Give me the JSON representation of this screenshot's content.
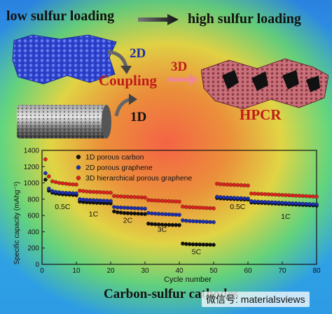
{
  "header": {
    "left_text": "low sulfur loading",
    "right_text": "high sulfur loading"
  },
  "schematic": {
    "label_2d": "2D",
    "label_3d": "3D",
    "label_1d": "1D",
    "label_coupling": "Coupling",
    "label_hpcr": "HPCR"
  },
  "footer": {
    "caption": "Carbon-sulfur cathodes",
    "watermark": "微信号: materialsviews"
  },
  "colors": {
    "series_1d": "#111111",
    "series_2d": "#1c2fb0",
    "series_3d": "#e0231d",
    "red_accent": "#c11a1a",
    "blue_accent": "#1f2fa8"
  },
  "chart_data": {
    "type": "scatter",
    "xlabel": "Cycle number",
    "ylabel": "Specific capacity (mAhg⁻¹)",
    "xlim": [
      0,
      80
    ],
    "ylim": [
      0,
      1400
    ],
    "xticks": [
      0,
      10,
      20,
      30,
      40,
      50,
      60,
      70,
      80
    ],
    "yticks": [
      0,
      200,
      400,
      600,
      800,
      1000,
      1200,
      1400
    ],
    "grid": false,
    "legend_position": "top-left",
    "rate_labels": [
      {
        "text": "0.5C",
        "x": 6,
        "y": 680
      },
      {
        "text": "1C",
        "x": 15,
        "y": 590
      },
      {
        "text": "2C",
        "x": 25,
        "y": 510
      },
      {
        "text": "3C",
        "x": 35,
        "y": 400
      },
      {
        "text": "5C",
        "x": 45,
        "y": 125
      },
      {
        "text": "0.5C",
        "x": 57,
        "y": 680
      },
      {
        "text": "1C",
        "x": 71,
        "y": 560
      }
    ],
    "series": [
      {
        "name": "1D porous carbon",
        "x": [
          1,
          2,
          3,
          4,
          5,
          6,
          7,
          8,
          9,
          10,
          11,
          12,
          13,
          14,
          15,
          16,
          17,
          18,
          19,
          20,
          21,
          22,
          23,
          24,
          25,
          26,
          27,
          28,
          29,
          30,
          31,
          32,
          33,
          34,
          35,
          36,
          37,
          38,
          39,
          40,
          41,
          42,
          43,
          44,
          45,
          46,
          47,
          48,
          49,
          50,
          51,
          52,
          53,
          54,
          55,
          56,
          57,
          58,
          59,
          60,
          61,
          62,
          63,
          64,
          65,
          66,
          67,
          68,
          69,
          70,
          71,
          72,
          73,
          74,
          75,
          76,
          77,
          78,
          79,
          80
        ],
        "y": [
          1040,
          905,
          880,
          870,
          865,
          860,
          858,
          855,
          852,
          850,
          770,
          765,
          762,
          760,
          758,
          756,
          754,
          752,
          750,
          748,
          650,
          640,
          635,
          630,
          628,
          626,
          624,
          622,
          620,
          618,
          500,
          495,
          492,
          490,
          488,
          486,
          485,
          484,
          483,
          482,
          255,
          250,
          248,
          246,
          245,
          244,
          243,
          242,
          241,
          240,
          815,
          810,
          808,
          806,
          804,
          802,
          800,
          798,
          796,
          795,
          760,
          758,
          756,
          754,
          752,
          750,
          748,
          746,
          744,
          742,
          740,
          738,
          736,
          734,
          732,
          730,
          728,
          726,
          724,
          722
        ]
      },
      {
        "name": "2D porous graphene",
        "x": [
          1,
          2,
          3,
          4,
          5,
          6,
          7,
          8,
          9,
          10,
          11,
          12,
          13,
          14,
          15,
          16,
          17,
          18,
          19,
          20,
          21,
          22,
          23,
          24,
          25,
          26,
          27,
          28,
          29,
          30,
          31,
          32,
          33,
          34,
          35,
          36,
          37,
          38,
          39,
          40,
          41,
          42,
          43,
          44,
          45,
          46,
          47,
          48,
          49,
          50,
          51,
          52,
          53,
          54,
          55,
          56,
          57,
          58,
          59,
          60,
          61,
          62,
          63,
          64,
          65,
          66,
          67,
          68,
          69,
          70,
          71,
          72,
          73,
          74,
          75,
          76,
          77,
          78,
          79,
          80
        ],
        "y": [
          1120,
          930,
          900,
          890,
          885,
          880,
          878,
          876,
          874,
          872,
          800,
          795,
          792,
          790,
          788,
          786,
          784,
          782,
          780,
          778,
          705,
          700,
          698,
          696,
          694,
          692,
          690,
          688,
          686,
          684,
          630,
          625,
          622,
          620,
          618,
          616,
          614,
          612,
          610,
          608,
          540,
          535,
          532,
          530,
          528,
          526,
          524,
          522,
          520,
          518,
          830,
          825,
          822,
          820,
          818,
          816,
          814,
          812,
          810,
          808,
          775,
          772,
          770,
          768,
          766,
          764,
          762,
          760,
          758,
          756,
          754,
          752,
          750,
          748,
          746,
          744,
          742,
          740,
          738,
          736
        ]
      },
      {
        "name": "3D hierarchical porous graphene",
        "x": [
          1,
          2,
          3,
          4,
          5,
          6,
          7,
          8,
          9,
          10,
          11,
          12,
          13,
          14,
          15,
          16,
          17,
          18,
          19,
          20,
          21,
          22,
          23,
          24,
          25,
          26,
          27,
          28,
          29,
          30,
          31,
          32,
          33,
          34,
          35,
          36,
          37,
          38,
          39,
          40,
          41,
          42,
          43,
          44,
          45,
          46,
          47,
          48,
          49,
          50,
          51,
          52,
          53,
          54,
          55,
          56,
          57,
          58,
          59,
          60,
          61,
          62,
          63,
          64,
          65,
          66,
          67,
          68,
          69,
          70,
          71,
          72,
          73,
          74,
          75,
          76,
          77,
          78,
          79,
          80
        ],
        "y": [
          1290,
          1080,
          1020,
          1010,
          1000,
          995,
          990,
          985,
          982,
          980,
          905,
          900,
          895,
          892,
          890,
          888,
          886,
          884,
          882,
          880,
          840,
          836,
          834,
          832,
          830,
          828,
          826,
          824,
          822,
          820,
          790,
          786,
          784,
          782,
          780,
          778,
          776,
          774,
          772,
          770,
          710,
          705,
          702,
          700,
          698,
          696,
          694,
          692,
          690,
          688,
          990,
          985,
          982,
          980,
          978,
          976,
          974,
          972,
          970,
          968,
          870,
          868,
          866,
          864,
          862,
          860,
          858,
          856,
          854,
          852,
          850,
          848,
          846,
          844,
          842,
          840,
          838,
          836,
          834,
          832
        ]
      }
    ]
  }
}
